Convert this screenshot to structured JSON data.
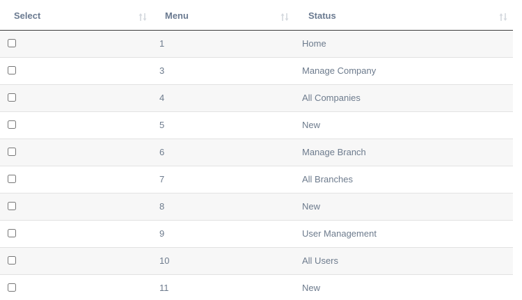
{
  "table": {
    "headers": {
      "select": "Select",
      "menu": "Menu",
      "status": "Status"
    },
    "sort_icon": "sort-both-icon",
    "rows": [
      {
        "menu": "1",
        "status": "Home",
        "checked": false
      },
      {
        "menu": "3",
        "status": "Manage Company",
        "checked": false
      },
      {
        "menu": "4",
        "status": "All Companies",
        "checked": false
      },
      {
        "menu": "5",
        "status": "New",
        "checked": false
      },
      {
        "menu": "6",
        "status": "Manage Branch",
        "checked": false
      },
      {
        "menu": "7",
        "status": "All Branches",
        "checked": false
      },
      {
        "menu": "8",
        "status": "New",
        "checked": false
      },
      {
        "menu": "9",
        "status": "User Management",
        "checked": false
      },
      {
        "menu": "10",
        "status": "All Users",
        "checked": false
      },
      {
        "menu": "11",
        "status": "New",
        "checked": false
      }
    ]
  },
  "colors": {
    "header_text": "#6a7a90",
    "cell_text": "#6d7b8d",
    "stripe": "#f7f7f7",
    "header_border": "#3b3b3b",
    "row_border": "#e2e2e2"
  }
}
